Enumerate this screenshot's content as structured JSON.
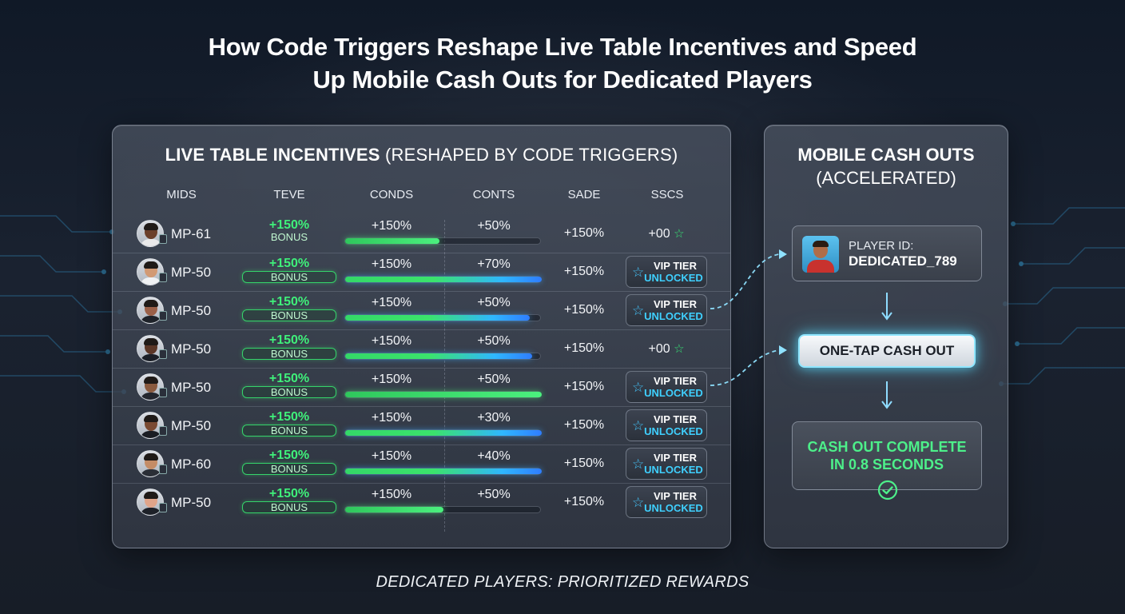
{
  "headline": {
    "line1": "How Code Triggers Reshape Live Table Incentives and Speed",
    "line2": "Up Mobile Cash Outs for Dedicated Players"
  },
  "left_panel": {
    "title_bold": "LIVE TABLE INCENTIVES",
    "title_paren": "(RESHAPED BY CODE TRIGGERS)",
    "columns": [
      "MIDS",
      "TEVE",
      "CONDS",
      "CONTS",
      "SADE",
      "SSCS"
    ],
    "rows": [
      {
        "id": "MP-61",
        "bonus_pct": "+150%",
        "bonus_label": "BONUS",
        "bonus_boxed": false,
        "conds": "+150%",
        "conts": "+50%",
        "progress": 0.48,
        "bar": "green",
        "sade": "+150%",
        "sscs_type": "value",
        "sscs_value": "+00",
        "skin": "#6b3f2a",
        "shirt": "#e9e9ea"
      },
      {
        "id": "MP-50",
        "bonus_pct": "+150%",
        "bonus_label": "BONUS",
        "bonus_boxed": true,
        "conds": "+150%",
        "conts": "+70%",
        "progress": 1.0,
        "bar": "green-blue",
        "sade": "+150%",
        "sscs_type": "vip",
        "skin": "#d29a74",
        "shirt": "#f0f2f4"
      },
      {
        "id": "MP-50",
        "bonus_pct": "+150%",
        "bonus_label": "BONUS",
        "bonus_boxed": true,
        "conds": "+150%",
        "conts": "+50%",
        "progress": 0.94,
        "bar": "green-blue",
        "sade": "+150%",
        "sscs_type": "vip",
        "skin": "#9a6048",
        "shirt": "#1e2229"
      },
      {
        "id": "MP-50",
        "bonus_pct": "+150%",
        "bonus_label": "BONUS",
        "bonus_boxed": true,
        "conds": "+150%",
        "conts": "+50%",
        "progress": 0.95,
        "bar": "green-blue",
        "sade": "+150%",
        "sscs_type": "value",
        "sscs_value": "+00",
        "skin": "#5a3626",
        "shirt": "#1b1f26"
      },
      {
        "id": "MP-50",
        "bonus_pct": "+150%",
        "bonus_label": "BONUS",
        "bonus_boxed": true,
        "conds": "+150%",
        "conts": "+50%",
        "progress": 1.0,
        "bar": "green",
        "sade": "+150%",
        "sscs_type": "vip",
        "skin": "#8a5a3e",
        "shirt": "#23262d"
      },
      {
        "id": "MP-50",
        "bonus_pct": "+150%",
        "bonus_label": "BONUS",
        "bonus_boxed": true,
        "conds": "+150%",
        "conts": "+30%",
        "progress": 1.0,
        "bar": "green-blue",
        "sade": "+150%",
        "sscs_type": "vip",
        "skin": "#7a4a32",
        "shirt": "#1a1d23"
      },
      {
        "id": "MP-60",
        "bonus_pct": "+150%",
        "bonus_label": "BONUS",
        "bonus_boxed": true,
        "conds": "+150%",
        "conts": "+40%",
        "progress": 1.0,
        "bar": "green-blue",
        "sade": "+150%",
        "sscs_type": "vip",
        "skin": "#c48c66",
        "shirt": "#2a2e36"
      },
      {
        "id": "MP-50",
        "bonus_pct": "+150%",
        "bonus_label": "BONUS",
        "bonus_boxed": true,
        "conds": "+150%",
        "conts": "+50%",
        "progress": 0.5,
        "bar": "green",
        "sade": "+150%",
        "sscs_type": "vip",
        "skin": "#e0a58a",
        "shirt": "#1d2128"
      }
    ],
    "vip_line1": "VIP TIER",
    "vip_line2": "UNLOCKED"
  },
  "right_panel": {
    "title_line1": "MOBILE CASH OUTS",
    "title_line2": "(ACCELERATED)",
    "player_id_label": "PLAYER ID:",
    "player_id_value": "DEDICATED_789",
    "cta_label": "ONE-TAP CASH OUT",
    "complete_line1": "CASH OUT COMPLETE",
    "complete_line2": "IN 0.8 SECONDS"
  },
  "icons": {
    "star_filled": "star-icon",
    "star_outline": "star-outline-icon",
    "check": "check-circle-icon",
    "arrow": "arrow-down-icon"
  },
  "colors": {
    "bonus_green": "#3ff07a",
    "progress_green": "#3be36c",
    "progress_blue": "#2f9bff",
    "vip_cyan": "#3fd0ff",
    "complete_green": "#4df08a"
  },
  "footer": "DEDICATED PLAYERS: PRIORITIZED REWARDS"
}
